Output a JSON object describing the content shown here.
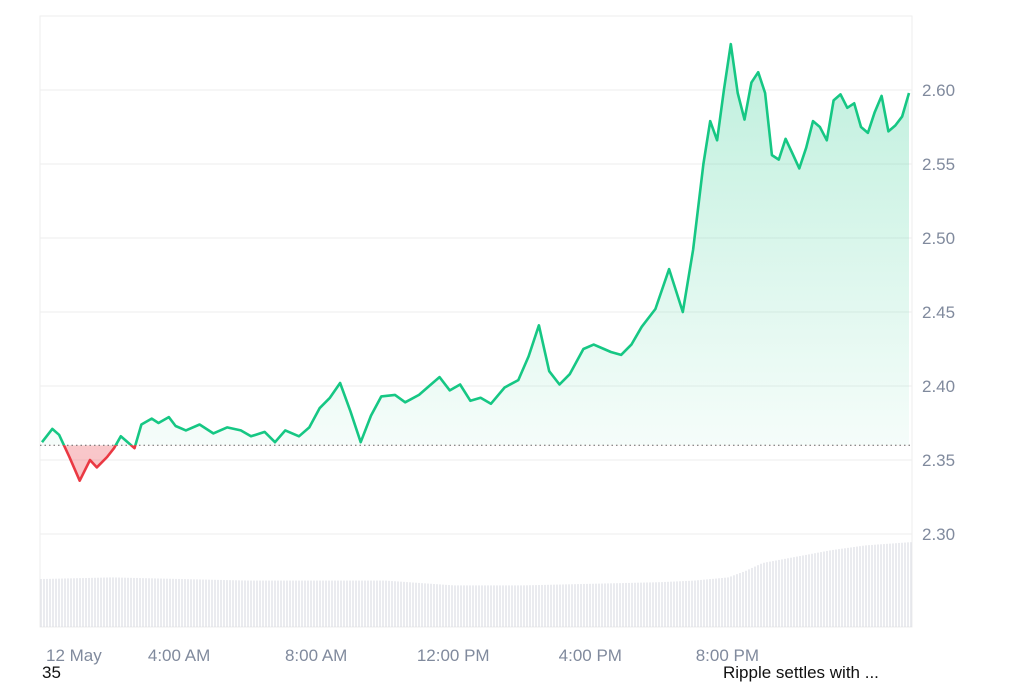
{
  "chart_data": {
    "type": "area",
    "baseline": 2.36,
    "ylim": [
      2.25,
      2.65
    ],
    "y_ticks": [
      2.3,
      2.35,
      2.4,
      2.45,
      2.5,
      2.55,
      2.6
    ],
    "y_tick_labels": [
      "2.30",
      "2.35",
      "2.40",
      "2.45",
      "2.50",
      "2.55",
      "2.60"
    ],
    "x_tick_labels": [
      "12 May",
      "4:00 AM",
      "8:00 AM",
      "12:00 PM",
      "4:00 PM",
      "8:00 PM"
    ],
    "x_tick_hours": [
      0,
      4,
      8,
      12,
      16,
      20
    ],
    "x_range_hours": [
      0,
      25.3
    ],
    "grid": true,
    "colors": {
      "up_line": "#16c784",
      "down_line": "#ea3943",
      "up_fill": "#16c784",
      "down_fill": "#ea3943",
      "grid": "#eeeeee",
      "baseline": "#666666",
      "axis_text": "#808a9d"
    },
    "series": [
      {
        "x": [
          0,
          0.3,
          0.5,
          0.8,
          1.1,
          1.4,
          1.6,
          1.9,
          2.1,
          2.3,
          2.5,
          2.7,
          2.9,
          3.2,
          3.4,
          3.7,
          3.9,
          4.2,
          4.6,
          5,
          5.4,
          5.8,
          6.1,
          6.5,
          6.8,
          7.1,
          7.5,
          7.8,
          8.1,
          8.4,
          8.7,
          9.0,
          9.3,
          9.6,
          9.9,
          10.3,
          10.6,
          11.0,
          11.3,
          11.6,
          11.9,
          12.2,
          12.5,
          12.8,
          13.1,
          13.5,
          13.9,
          14.2,
          14.5,
          14.8,
          15.1,
          15.4,
          15.8,
          16.1,
          16.4,
          16.6,
          16.9,
          17.2,
          17.5,
          17.9,
          18.3,
          18.7,
          19.0,
          19.3,
          19.5,
          19.7,
          19.9,
          20.1,
          20.3,
          20.5,
          20.7,
          20.9,
          21.1,
          21.3,
          21.5,
          21.7,
          21.9,
          22.1,
          22.3,
          22.5,
          22.7,
          22.9,
          23.1,
          23.3,
          23.5,
          23.7,
          23.9,
          24.1,
          24.3,
          24.5,
          24.7,
          24.9,
          25.1,
          25.3
        ],
        "y": [
          2.362,
          2.371,
          2.367,
          2.352,
          2.336,
          2.35,
          2.345,
          2.352,
          2.358,
          2.366,
          2.362,
          2.358,
          2.374,
          2.378,
          2.375,
          2.379,
          2.373,
          2.37,
          2.374,
          2.368,
          2.372,
          2.37,
          2.366,
          2.369,
          2.362,
          2.37,
          2.366,
          2.372,
          2.385,
          2.392,
          2.402,
          2.383,
          2.362,
          2.38,
          2.393,
          2.394,
          2.389,
          2.394,
          2.4,
          2.406,
          2.397,
          2.401,
          2.39,
          2.392,
          2.388,
          2.399,
          2.404,
          2.42,
          2.441,
          2.41,
          2.401,
          2.408,
          2.425,
          2.428,
          2.425,
          2.423,
          2.421,
          2.428,
          2.44,
          2.452,
          2.479,
          2.45,
          2.492,
          2.55,
          2.579,
          2.566,
          2.6,
          2.631,
          2.598,
          2.58,
          2.605,
          2.612,
          2.598,
          2.556,
          2.553,
          2.567,
          2.557,
          2.547,
          2.561,
          2.579,
          2.575,
          2.566,
          2.593,
          2.597,
          2.588,
          2.591,
          2.575,
          2.571,
          2.585,
          2.596,
          2.572,
          2.576,
          2.582,
          2.598
        ]
      }
    ],
    "volume": {
      "x": [
        0,
        2,
        4,
        6,
        8,
        10,
        12,
        14,
        16,
        18,
        19,
        20,
        20.5,
        21,
        22,
        23,
        24,
        25.3
      ],
      "relative": [
        0.3,
        0.31,
        0.3,
        0.29,
        0.29,
        0.29,
        0.26,
        0.26,
        0.27,
        0.28,
        0.29,
        0.31,
        0.35,
        0.4,
        0.44,
        0.48,
        0.51,
        0.53
      ]
    }
  },
  "footer": {
    "left_text": "35",
    "right_text": "Ripple settles with ..."
  }
}
